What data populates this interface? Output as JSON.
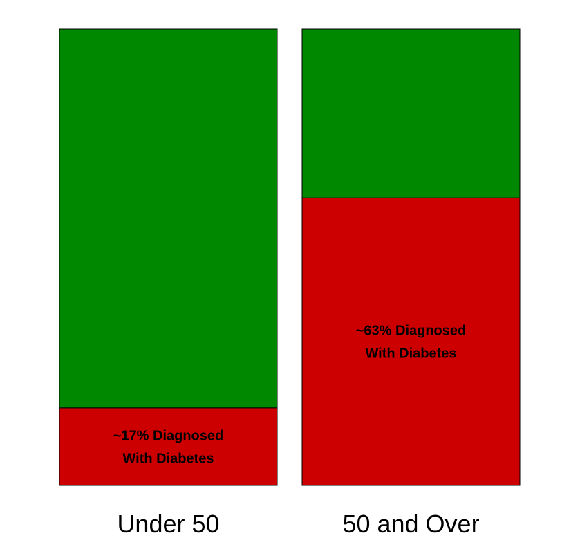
{
  "chart_data": {
    "type": "bar",
    "stacked": true,
    "normalized": true,
    "categories": [
      "Under 50",
      "50 and Over"
    ],
    "series": [
      {
        "values": [
          17,
          63
        ],
        "color": "#cc0000",
        "labels": [
          [
            "~17% Diagnosed",
            "With Diabetes"
          ],
          [
            "~63% Diagnosed",
            "With Diabetes"
          ]
        ]
      },
      {
        "values": [
          83,
          37
        ],
        "color": "#008800"
      }
    ],
    "ylim": [
      0,
      100
    ],
    "grid": false,
    "legend": "none",
    "title": "",
    "xlabel": "",
    "ylabel": ""
  }
}
